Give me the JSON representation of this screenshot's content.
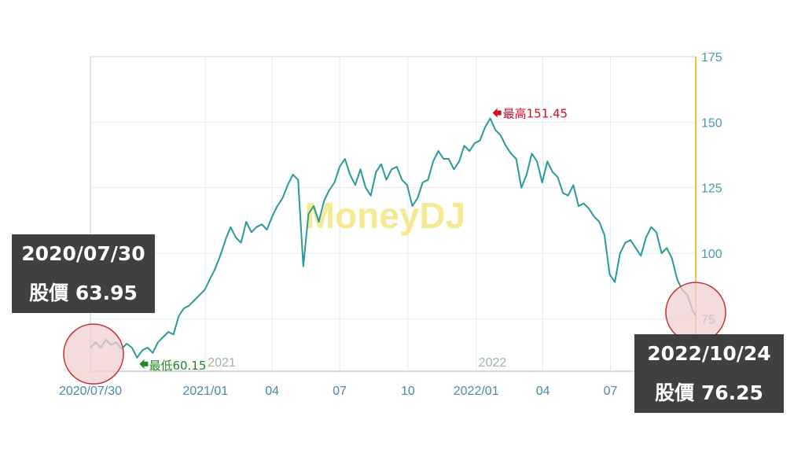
{
  "chart_data": {
    "type": "line",
    "title": "",
    "watermark": "MoneyDJ",
    "xlabel": "",
    "ylabel": "",
    "ylim": [
      55,
      175
    ],
    "y_ticks": [
      75,
      100,
      125,
      150,
      175
    ],
    "x_range": [
      "2020-07-30",
      "2022-10-24"
    ],
    "x_ticks": [
      {
        "date": "2020-07-30",
        "label": "2020/07/30"
      },
      {
        "date": "2021-01-01",
        "label": "2021/01"
      },
      {
        "date": "2021-04-01",
        "label": "04"
      },
      {
        "date": "2021-07-01",
        "label": "07"
      },
      {
        "date": "2021-10-01",
        "label": "10"
      },
      {
        "date": "2022-01-01",
        "label": "2022/01"
      },
      {
        "date": "2022-04-01",
        "label": "04"
      },
      {
        "date": "2022-07-01",
        "label": "07"
      }
    ],
    "year_labels": [
      {
        "date": "2021-01-01",
        "label": "2021"
      },
      {
        "date": "2022-01-01",
        "label": "2022"
      }
    ],
    "grid": true,
    "line_color": "#2a9a9a",
    "axis_highlight_color": "#f5c040",
    "series": [
      {
        "name": "",
        "x": [
          "2020-07-30",
          "2020-08-06",
          "2020-08-13",
          "2020-08-20",
          "2020-08-27",
          "2020-09-03",
          "2020-09-10",
          "2020-09-17",
          "2020-09-24",
          "2020-10-01",
          "2020-10-08",
          "2020-10-15",
          "2020-10-22",
          "2020-10-29",
          "2020-11-05",
          "2020-11-12",
          "2020-11-19",
          "2020-11-26",
          "2020-12-03",
          "2020-12-10",
          "2020-12-17",
          "2020-12-24",
          "2020-12-31",
          "2021-01-07",
          "2021-01-14",
          "2021-01-21",
          "2021-01-28",
          "2021-02-04",
          "2021-02-11",
          "2021-02-18",
          "2021-02-25",
          "2021-03-04",
          "2021-03-11",
          "2021-03-18",
          "2021-03-25",
          "2021-04-01",
          "2021-04-08",
          "2021-04-15",
          "2021-04-22",
          "2021-04-29",
          "2021-05-06",
          "2021-05-13",
          "2021-05-20",
          "2021-05-27",
          "2021-06-03",
          "2021-06-10",
          "2021-06-17",
          "2021-06-24",
          "2021-07-01",
          "2021-07-08",
          "2021-07-15",
          "2021-07-22",
          "2021-07-29",
          "2021-08-05",
          "2021-08-12",
          "2021-08-19",
          "2021-08-26",
          "2021-09-02",
          "2021-09-09",
          "2021-09-16",
          "2021-09-23",
          "2021-09-30",
          "2021-10-07",
          "2021-10-14",
          "2021-10-21",
          "2021-10-28",
          "2021-11-04",
          "2021-11-11",
          "2021-11-18",
          "2021-11-25",
          "2021-12-02",
          "2021-12-09",
          "2021-12-16",
          "2021-12-23",
          "2021-12-30",
          "2022-01-06",
          "2022-01-13",
          "2022-01-20",
          "2022-01-27",
          "2022-02-03",
          "2022-02-10",
          "2022-02-17",
          "2022-02-24",
          "2022-03-03",
          "2022-03-10",
          "2022-03-17",
          "2022-03-24",
          "2022-03-31",
          "2022-04-07",
          "2022-04-14",
          "2022-04-21",
          "2022-04-28",
          "2022-05-05",
          "2022-05-12",
          "2022-05-19",
          "2022-05-26",
          "2022-06-02",
          "2022-06-09",
          "2022-06-16",
          "2022-06-23",
          "2022-06-30",
          "2022-07-07",
          "2022-07-14",
          "2022-07-21",
          "2022-07-28",
          "2022-08-04",
          "2022-08-11",
          "2022-08-18",
          "2022-08-25",
          "2022-09-01",
          "2022-09-08",
          "2022-09-15",
          "2022-09-22",
          "2022-09-29",
          "2022-10-06",
          "2022-10-13",
          "2022-10-20",
          "2022-10-24"
        ],
        "y": [
          63.95,
          66,
          64,
          67,
          65,
          66,
          63.5,
          65.5,
          64,
          60.15,
          63,
          64,
          62,
          66,
          68,
          70,
          69,
          76,
          79,
          80,
          82,
          84,
          86,
          90,
          94,
          99,
          105,
          110,
          106,
          104,
          112,
          108,
          110,
          111,
          109,
          114,
          118,
          121,
          126,
          130,
          128,
          95,
          115,
          118,
          112,
          120,
          124,
          127,
          133,
          136,
          130,
          126,
          132,
          125,
          122,
          131,
          134,
          128,
          132,
          133,
          128,
          126,
          118,
          121,
          127,
          128,
          135,
          139,
          136,
          136,
          132,
          135,
          141,
          139,
          142,
          143,
          148,
          151.45,
          147,
          145,
          141,
          138,
          136,
          125,
          130,
          138,
          135,
          127,
          135,
          131,
          129,
          123,
          122,
          126,
          118,
          119,
          117,
          114,
          112,
          107,
          92,
          89,
          100,
          104,
          105,
          102,
          99,
          106,
          110,
          108,
          100,
          102,
          98,
          90,
          86,
          84,
          78,
          76.25
        ]
      }
    ],
    "annotations": {
      "high": {
        "date": "2022-01-20",
        "value": 151.45,
        "label": "最高151.45",
        "color": "#cc1122"
      },
      "low": {
        "date": "2020-10-01",
        "value": 60.15,
        "label": "最低60.15",
        "color": "#228822"
      }
    }
  },
  "callouts": {
    "start": {
      "date": "2020/07/30",
      "price": "股價 63.95"
    },
    "end": {
      "date": "2022/10/24",
      "price": "股價 76.25"
    },
    "circle_color": "#f0d0d0",
    "circle_stroke": "#c03030"
  }
}
